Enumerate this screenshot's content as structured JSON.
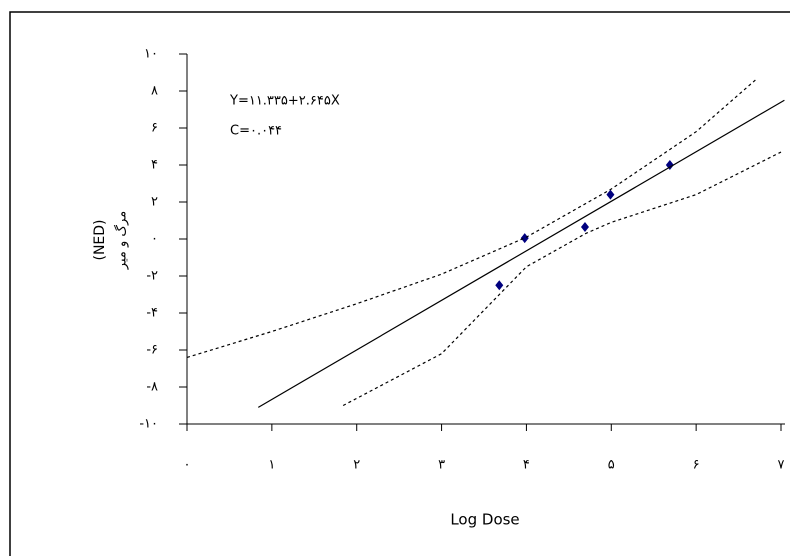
{
  "chart_data": {
    "type": "scatter",
    "annotations": [
      "Y=۱۱.۳۳۵+۲.۶۴۵X",
      "C=۰.۰۴۴"
    ],
    "x_label": "Log Dose",
    "y_label": [
      "مرگ و میر",
      "(NED)"
    ],
    "xlim": [
      0,
      7
    ],
    "ylim": [
      -10,
      10
    ],
    "xticks": [
      {
        "value": 0,
        "label": "۰"
      },
      {
        "value": 1,
        "label": "۱"
      },
      {
        "value": 2,
        "label": "۲"
      },
      {
        "value": 3,
        "label": "۳"
      },
      {
        "value": 4,
        "label": "۴"
      },
      {
        "value": 5,
        "label": "۵"
      },
      {
        "value": 6,
        "label": "۶"
      },
      {
        "value": 7,
        "label": "۷"
      }
    ],
    "yticks": [
      {
        "value": 10,
        "label": "۱۰"
      },
      {
        "value": 8,
        "label": "۸"
      },
      {
        "value": 6,
        "label": "۶"
      },
      {
        "value": 4,
        "label": "۴"
      },
      {
        "value": 2,
        "label": "۲"
      },
      {
        "value": 0,
        "label": "۰"
      },
      {
        "value": -2,
        "label": "-۲"
      },
      {
        "value": -4,
        "label": "-۴"
      },
      {
        "value": -6,
        "label": "-۶"
      },
      {
        "value": -8,
        "label": "-۸"
      },
      {
        "value": -10,
        "label": "-۱۰"
      }
    ],
    "series": [
      {
        "style": "markers",
        "color": "#00007f",
        "x": [
          3.68,
          3.98,
          4.69,
          4.99,
          5.69
        ],
        "values": [
          -2.5,
          0.05,
          0.65,
          2.4,
          4.0
        ]
      },
      {
        "style": "solid",
        "color": "#000000",
        "x": [
          0.84,
          7.04
        ],
        "values": [
          -9.1,
          7.5
        ]
      },
      {
        "style": "dotted",
        "color": "#000000",
        "x": [
          0,
          1,
          2,
          3,
          4,
          5,
          6,
          6.7
        ],
        "values": [
          -6.4,
          -5.0,
          -3.5,
          -1.9,
          0.1,
          2.7,
          5.8,
          8.6
        ]
      },
      {
        "style": "dotted",
        "color": "#000000",
        "x": [
          1.84,
          3,
          4,
          4.7,
          5,
          6,
          7
        ],
        "values": [
          -9.0,
          -6.2,
          -1.5,
          0.3,
          0.9,
          2.4,
          4.7
        ]
      }
    ]
  }
}
